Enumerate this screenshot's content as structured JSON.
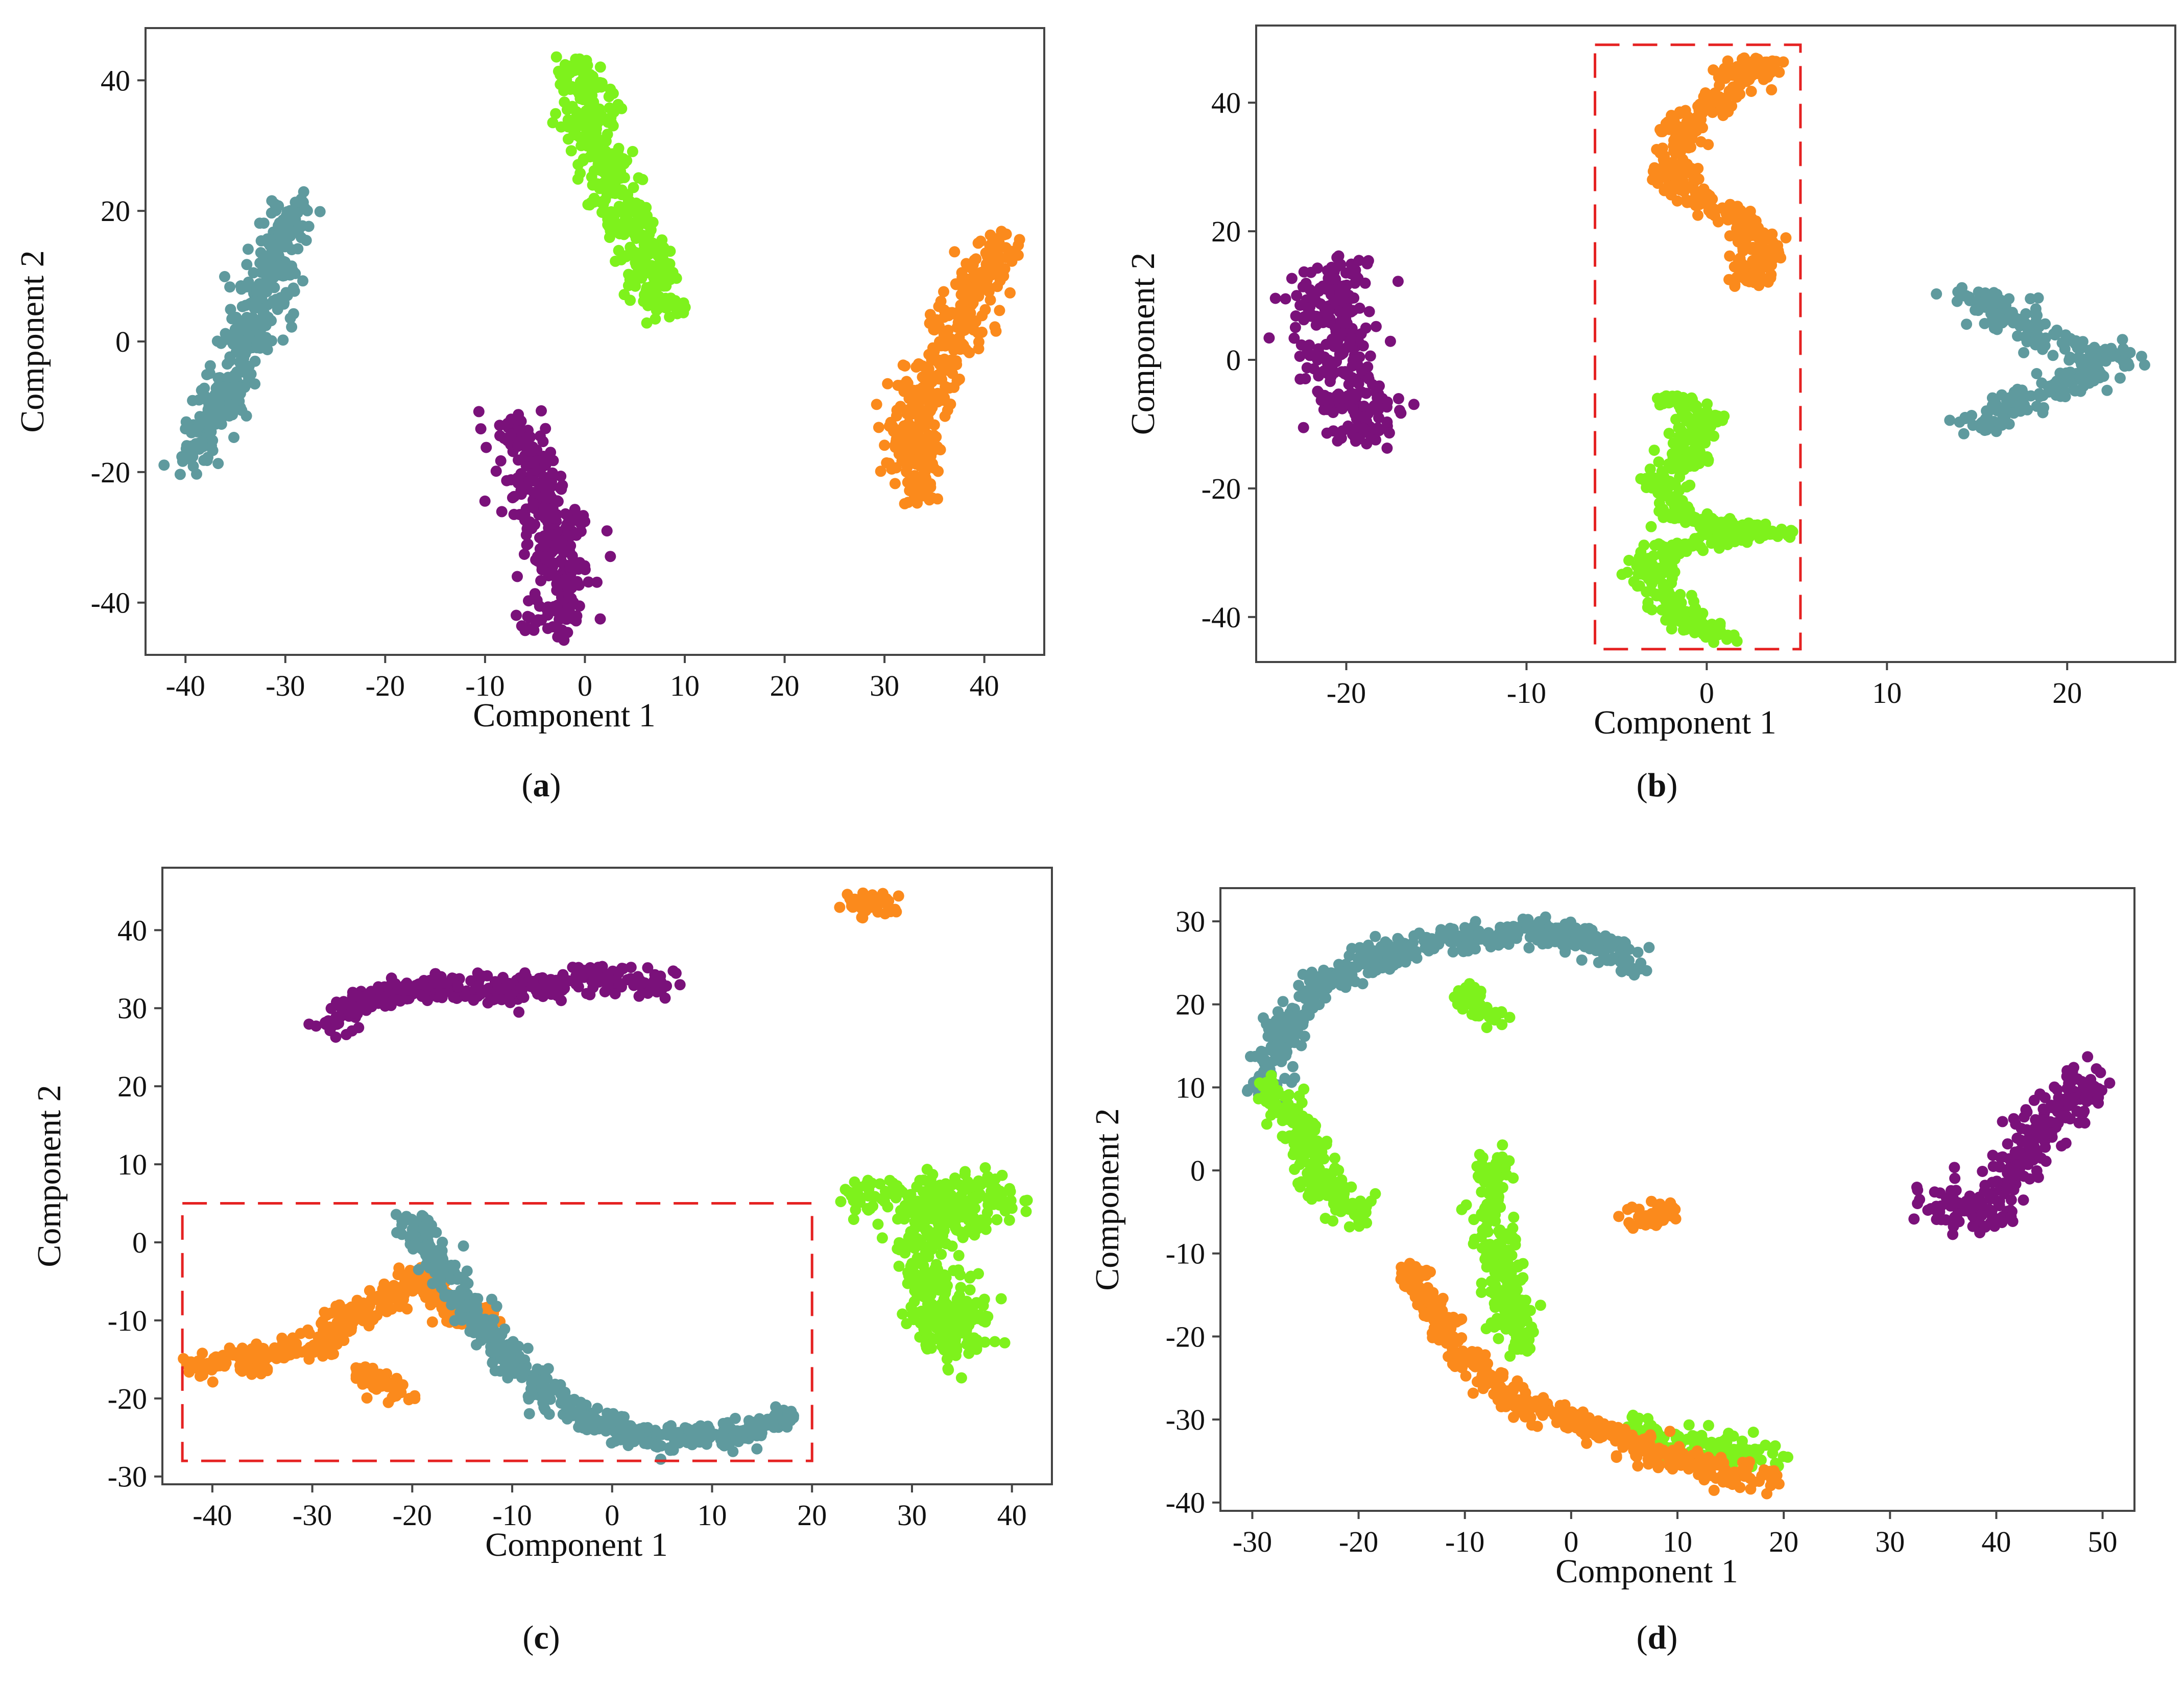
{
  "figure_title": "",
  "colors": {
    "teal": "#5f9a9e",
    "green": "#7ef21c",
    "orange": "#fb8a1c",
    "purple": "#7a117a",
    "highlight": "#e52222"
  },
  "chart_data": [
    {
      "id": "a",
      "type": "scatter",
      "caption": {
        "open": "(",
        "letter": "a",
        "close": ")"
      },
      "xlabel": "Component 1",
      "ylabel": "Component 2",
      "xlim": [
        -44,
        46
      ],
      "ylim": [
        -48,
        48
      ],
      "xticks": [
        -40,
        -30,
        -20,
        -10,
        0,
        10,
        20,
        30,
        40
      ],
      "yticks": [
        -40,
        -20,
        0,
        20,
        40
      ],
      "grid": false,
      "highlight_box": null,
      "series": [
        {
          "name": "teal",
          "color": "#5f9a9e",
          "spread": 1.3,
          "path": [
            [
              -39.5,
              -18
            ],
            [
              -36,
              -8
            ],
            [
              -33,
              2
            ],
            [
              -31,
              12
            ],
            [
              -29.5,
              20
            ]
          ]
        },
        {
          "name": "green",
          "color": "#7ef21c",
          "spread": 1.4,
          "path": [
            [
              -0.5,
              42
            ],
            [
              0,
              33
            ],
            [
              2,
              27
            ],
            [
              4,
              20
            ],
            [
              6,
              12
            ],
            [
              8,
              5
            ]
          ]
        },
        {
          "name": "purple",
          "color": "#7a117a",
          "spread": 1.6,
          "path": [
            [
              -7,
              -14
            ],
            [
              -4.5,
              -22
            ],
            [
              -3,
              -30
            ],
            [
              -2.5,
              -37
            ],
            [
              -3,
              -43
            ]
          ]
        },
        {
          "name": "orange",
          "color": "#fb8a1c",
          "spread": 1.4,
          "path": [
            [
              41,
              15
            ],
            [
              38,
              4
            ],
            [
              35,
              -4
            ],
            [
              33,
              -12
            ],
            [
              33.5,
              -23
            ]
          ]
        }
      ]
    },
    {
      "id": "b",
      "type": "scatter",
      "caption": {
        "open": "(",
        "letter": "b",
        "close": ")"
      },
      "xlabel": "Component 1",
      "ylabel": "Component 2",
      "xlim": [
        -25,
        26
      ],
      "ylim": [
        -47,
        52
      ],
      "xticks": [
        -20,
        -10,
        0,
        10,
        20
      ],
      "yticks": [
        -40,
        -20,
        0,
        20,
        40
      ],
      "grid": false,
      "highlight_box": {
        "x0": -6.2,
        "x1": 5.2,
        "y0": -45,
        "y1": 49
      },
      "series": [
        {
          "name": "purple",
          "color": "#7a117a",
          "spread": 1.2,
          "path": [
            [
              -20,
              15
            ],
            [
              -21,
              7
            ],
            [
              -20.5,
              0
            ],
            [
              -19.5,
              -7
            ],
            [
              -19,
              -12
            ]
          ]
        },
        {
          "name": "orange",
          "color": "#fb8a1c",
          "spread": 0.7,
          "path": [
            [
              1.5,
              45
            ],
            [
              3,
              46
            ],
            [
              -1.5,
              36
            ],
            [
              -2,
              29
            ],
            [
              -0.5,
              25
            ],
            [
              2,
              22
            ],
            [
              3,
              17
            ],
            [
              2.5,
              12
            ]
          ]
        },
        {
          "name": "green",
          "color": "#7ef21c",
          "spread": 0.7,
          "path": [
            [
              -2,
              -6
            ],
            [
              0,
              -9
            ],
            [
              -0.5,
              -12
            ],
            [
              -2.5,
              -19
            ],
            [
              -1.5,
              -24
            ],
            [
              1,
              -26
            ],
            [
              3.5,
              -27
            ],
            [
              -2,
              -29
            ],
            [
              -3.5,
              -33
            ],
            [
              -1,
              -41
            ],
            [
              0.5,
              -43
            ]
          ]
        },
        {
          "name": "teal",
          "color": "#5f9a9e",
          "spread": 0.9,
          "path": [
            [
              15,
              10
            ],
            [
              17,
              6
            ],
            [
              19.5,
              3
            ],
            [
              22.5,
              0
            ],
            [
              20,
              -4
            ],
            [
              17,
              -7
            ],
            [
              15,
              -10
            ]
          ]
        }
      ]
    },
    {
      "id": "c",
      "type": "scatter",
      "caption": {
        "open": "(",
        "letter": "c",
        "close": ")"
      },
      "xlabel": "Component 1",
      "ylabel": "Component 2",
      "xlim": [
        -45,
        44
      ],
      "ylim": [
        -31,
        48
      ],
      "xticks": [
        -40,
        -30,
        -20,
        -10,
        0,
        10,
        20,
        30,
        40
      ],
      "yticks": [
        -30,
        -20,
        -10,
        0,
        10,
        20,
        30,
        40
      ],
      "grid": false,
      "highlight_box": {
        "x0": -43,
        "x1": 20,
        "y0": -28,
        "y1": 5
      },
      "series": [
        {
          "name": "purple",
          "color": "#7a117a",
          "spread": 1.0,
          "path": [
            [
              -28,
              28
            ],
            [
              -25,
              31
            ],
            [
              -18,
              33
            ],
            [
              -10,
              32
            ],
            [
              -3,
              34
            ],
            [
              5,
              33
            ]
          ]
        },
        {
          "name": "orange",
          "color": "#fb8a1c",
          "spread": 0.9,
          "path": [
            [
              24,
              44
            ],
            [
              27,
              43
            ],
            [
              -42,
              -16
            ],
            [
              -36,
              -15
            ],
            [
              -29,
              -13
            ],
            [
              -26,
              -9
            ],
            [
              -22,
              -7
            ],
            [
              -19,
              -4
            ],
            [
              -16,
              -9
            ],
            [
              -12,
              -9
            ],
            [
              -25,
              -17
            ],
            [
              -21,
              -19
            ]
          ]
        },
        {
          "name": "teal",
          "color": "#5f9a9e",
          "spread": 0.9,
          "path": [
            [
              -20,
              3
            ],
            [
              -18,
              -2
            ],
            [
              -15,
              -7
            ],
            [
              -11,
              -14
            ],
            [
              -7,
              -19
            ],
            [
              -2,
              -23
            ],
            [
              3,
              -25
            ],
            [
              9,
              -25
            ],
            [
              14,
              -24
            ],
            [
              17,
              -22
            ]
          ]
        },
        {
          "name": "green",
          "color": "#7ef21c",
          "spread": 1.6,
          "path": [
            [
              25,
              6
            ],
            [
              31,
              5
            ],
            [
              38,
              6
            ],
            [
              30,
              0
            ],
            [
              33,
              -5
            ],
            [
              32,
              -11
            ],
            [
              36,
              -9
            ],
            [
              34,
              -14
            ],
            [
              40,
              5
            ]
          ]
        }
      ]
    },
    {
      "id": "d",
      "type": "scatter",
      "caption": {
        "open": "(",
        "letter": "d",
        "close": ")"
      },
      "xlabel": "Component 1",
      "ylabel": "Component 2",
      "xlim": [
        -33,
        53
      ],
      "ylim": [
        -41,
        34
      ],
      "xticks": [
        -30,
        -20,
        -10,
        0,
        10,
        20,
        30,
        40,
        50
      ],
      "yticks": [
        -40,
        -30,
        -20,
        -10,
        0,
        10,
        20,
        30
      ],
      "grid": false,
      "highlight_box": null,
      "series": [
        {
          "name": "teal",
          "color": "#5f9a9e",
          "spread": 0.9,
          "path": [
            [
              -29,
              10
            ],
            [
              -27,
              17
            ],
            [
              -24,
              22
            ],
            [
              -18,
              26
            ],
            [
              -10,
              28
            ],
            [
              -3,
              29
            ],
            [
              3,
              27
            ],
            [
              6,
              25
            ]
          ]
        },
        {
          "name": "green",
          "color": "#7ef21c",
          "spread": 1.0,
          "path": [
            [
              -28,
              10
            ],
            [
              -25,
              4
            ],
            [
              -23,
              -2
            ],
            [
              -20,
              -6
            ],
            [
              -10,
              21
            ],
            [
              -7,
              19
            ],
            [
              -7,
              1
            ],
            [
              -8,
              -5
            ],
            [
              -6,
              -14
            ],
            [
              -5,
              -21
            ],
            [
              6,
              -31
            ],
            [
              10,
              -33
            ],
            [
              18,
              -34
            ]
          ]
        },
        {
          "name": "orange",
          "color": "#fb8a1c",
          "spread": 0.8,
          "path": [
            [
              -15,
              -12
            ],
            [
              -13,
              -17
            ],
            [
              -10,
              -23
            ],
            [
              -5,
              -28
            ],
            [
              2,
              -31
            ],
            [
              8,
              -34
            ],
            [
              13,
              -36
            ],
            [
              18,
              -37
            ],
            [
              6,
              -6
            ],
            [
              9,
              -5
            ]
          ]
        },
        {
          "name": "purple",
          "color": "#7a117a",
          "spread": 1.3,
          "path": [
            [
              34,
              -4
            ],
            [
              39,
              -5
            ],
            [
              42,
              0
            ],
            [
              44,
              5
            ],
            [
              47,
              8
            ],
            [
              49,
              11
            ]
          ]
        }
      ]
    }
  ]
}
